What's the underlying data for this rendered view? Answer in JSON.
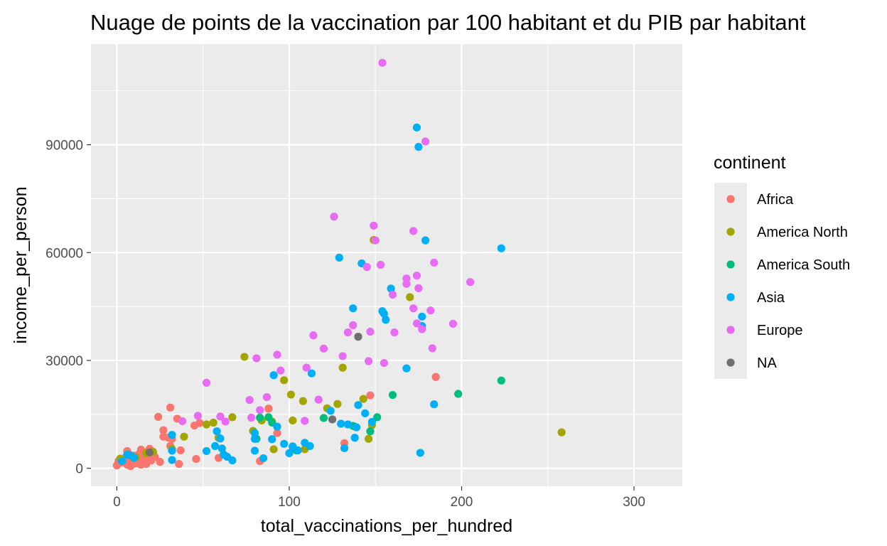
{
  "chart_data": {
    "type": "scatter",
    "title": "Nuage de points de la vaccination par 100 habitant et du PIB par habitant",
    "xlabel": "total_vaccinations_per_hundred",
    "ylabel": "income_per_person",
    "xlim": [
      -15,
      328
    ],
    "ylim": [
      -5000,
      118000
    ],
    "x_ticks": [
      0,
      100,
      200,
      300
    ],
    "y_ticks": [
      0,
      30000,
      60000,
      90000
    ],
    "x_tick_labels": [
      "0",
      "100",
      "200",
      "300"
    ],
    "y_tick_labels": [
      "0",
      "30000",
      "60000",
      "90000"
    ],
    "grid": true,
    "panel_background": "#ebebeb",
    "legend": {
      "title": "continent",
      "position": "right"
    },
    "series": [
      {
        "name": "Africa",
        "color": "#f8766d",
        "points": [
          [
            0,
            800
          ],
          [
            0.5,
            1200
          ],
          [
            1,
            2000
          ],
          [
            2,
            1500
          ],
          [
            3,
            2500
          ],
          [
            4,
            1800
          ],
          [
            5,
            3000
          ],
          [
            6,
            1000
          ],
          [
            6,
            4800
          ],
          [
            7,
            2200
          ],
          [
            8,
            600
          ],
          [
            9,
            1600
          ],
          [
            10,
            3500
          ],
          [
            10,
            2800
          ],
          [
            11,
            1400
          ],
          [
            12,
            2400
          ],
          [
            13,
            4000
          ],
          [
            14,
            5200
          ],
          [
            14,
            1000
          ],
          [
            15,
            2000
          ],
          [
            15,
            3000
          ],
          [
            16,
            4500
          ],
          [
            17,
            1200
          ],
          [
            17,
            2600
          ],
          [
            18,
            3800
          ],
          [
            19,
            5400
          ],
          [
            20,
            2200
          ],
          [
            21,
            4400
          ],
          [
            22,
            3200
          ],
          [
            24,
            14300
          ],
          [
            25,
            1800
          ],
          [
            27,
            10600
          ],
          [
            27,
            8800
          ],
          [
            30,
            8500
          ],
          [
            31,
            16900
          ],
          [
            31,
            6200
          ],
          [
            32,
            8200
          ],
          [
            35,
            13800
          ],
          [
            36,
            1200
          ],
          [
            37,
            5000
          ],
          [
            45,
            11900
          ],
          [
            46,
            2600
          ],
          [
            48,
            12600
          ],
          [
            59,
            2900
          ],
          [
            83,
            2000
          ],
          [
            88,
            16600
          ],
          [
            93,
            9800
          ],
          [
            102,
            5700
          ],
          [
            132,
            7000
          ],
          [
            147,
            20300
          ],
          [
            185,
            25400
          ]
        ]
      },
      {
        "name": "America North",
        "color": "#a3a500",
        "points": [
          [
            2,
            2700
          ],
          [
            11,
            3100
          ],
          [
            17,
            4200
          ],
          [
            21,
            4600
          ],
          [
            32,
            5400
          ],
          [
            39,
            8800
          ],
          [
            52,
            12200
          ],
          [
            56,
            12700
          ],
          [
            59,
            8500
          ],
          [
            67,
            14200
          ],
          [
            74,
            31000
          ],
          [
            79,
            10400
          ],
          [
            84,
            13300
          ],
          [
            90,
            13000
          ],
          [
            91,
            5300
          ],
          [
            97,
            24500
          ],
          [
            101,
            20500
          ],
          [
            102,
            13300
          ],
          [
            108,
            18700
          ],
          [
            109,
            5300
          ],
          [
            122,
            16700
          ],
          [
            128,
            17900
          ],
          [
            131,
            28000
          ],
          [
            138,
            11600
          ],
          [
            143,
            19300
          ],
          [
            146,
            8200
          ],
          [
            148,
            12000
          ],
          [
            149,
            63500
          ],
          [
            170,
            47600
          ],
          [
            258,
            10000
          ]
        ]
      },
      {
        "name": "America South",
        "color": "#00bf7d",
        "points": [
          [
            81,
            8200
          ],
          [
            83,
            14100
          ],
          [
            88,
            14200
          ],
          [
            90,
            12700
          ],
          [
            104,
            5000
          ],
          [
            120,
            14000
          ],
          [
            137,
            11800
          ],
          [
            147,
            10300
          ],
          [
            151,
            14200
          ],
          [
            160,
            20400
          ],
          [
            198,
            20700
          ],
          [
            223,
            24400
          ]
        ]
      },
      {
        "name": "Asia",
        "color": "#00b0f6",
        "points": [
          [
            3,
            2000
          ],
          [
            6,
            3800
          ],
          [
            8,
            3600
          ],
          [
            10,
            2900
          ],
          [
            32,
            9300
          ],
          [
            32,
            4900
          ],
          [
            32,
            2300
          ],
          [
            52,
            4800
          ],
          [
            57,
            6200
          ],
          [
            58,
            10300
          ],
          [
            60,
            8300
          ],
          [
            61,
            5500
          ],
          [
            62,
            3800
          ],
          [
            64,
            3200
          ],
          [
            67,
            2200
          ],
          [
            80,
            9800
          ],
          [
            80,
            4900
          ],
          [
            80,
            8200
          ],
          [
            85,
            2800
          ],
          [
            90,
            8100
          ],
          [
            91,
            25900
          ],
          [
            93,
            11600
          ],
          [
            97,
            6800
          ],
          [
            100,
            4200
          ],
          [
            102,
            6100
          ],
          [
            105,
            5000
          ],
          [
            109,
            7100
          ],
          [
            112,
            6200
          ],
          [
            113,
            26400
          ],
          [
            124,
            16000
          ],
          [
            129,
            58600
          ],
          [
            130,
            12400
          ],
          [
            132,
            5600
          ],
          [
            134,
            12200
          ],
          [
            137,
            44500
          ],
          [
            138,
            8500
          ],
          [
            139,
            11400
          ],
          [
            140,
            17600
          ],
          [
            142,
            57000
          ],
          [
            144,
            15300
          ],
          [
            148,
            12900
          ],
          [
            154,
            43700
          ],
          [
            155,
            43000
          ],
          [
            156,
            41300
          ],
          [
            159,
            50000
          ],
          [
            168,
            27800
          ],
          [
            174,
            94800
          ],
          [
            175,
            89400
          ],
          [
            176,
            4300
          ],
          [
            177,
            42200
          ],
          [
            177,
            39600
          ],
          [
            179,
            63400
          ],
          [
            184,
            17800
          ],
          [
            223,
            61200
          ]
        ]
      },
      {
        "name": "Europe",
        "color": "#e76bf3",
        "points": [
          [
            38,
            13100
          ],
          [
            47,
            14600
          ],
          [
            52,
            23800
          ],
          [
            60,
            14400
          ],
          [
            63,
            13000
          ],
          [
            77,
            19000
          ],
          [
            78,
            14100
          ],
          [
            81,
            30600
          ],
          [
            83,
            16200
          ],
          [
            87,
            19800
          ],
          [
            93,
            31600
          ],
          [
            95,
            27200
          ],
          [
            109,
            13200
          ],
          [
            110,
            28000
          ],
          [
            114,
            37000
          ],
          [
            117,
            19100
          ],
          [
            120,
            33300
          ],
          [
            126,
            70000
          ],
          [
            131,
            31200
          ],
          [
            134,
            37800
          ],
          [
            137,
            39800
          ],
          [
            145,
            56000
          ],
          [
            146,
            29800
          ],
          [
            147,
            38000
          ],
          [
            149,
            67500
          ],
          [
            150,
            63400
          ],
          [
            153,
            56600
          ],
          [
            154,
            112800
          ],
          [
            155,
            29300
          ],
          [
            160,
            48300
          ],
          [
            161,
            37800
          ],
          [
            168,
            51300
          ],
          [
            168,
            52800
          ],
          [
            172,
            44500
          ],
          [
            172,
            66000
          ],
          [
            174,
            40300
          ],
          [
            174,
            53600
          ],
          [
            175,
            50100
          ],
          [
            177,
            38700
          ],
          [
            179,
            90900
          ],
          [
            182,
            43900
          ],
          [
            183,
            33400
          ],
          [
            184,
            57200
          ],
          [
            195,
            40200
          ],
          [
            205,
            51800
          ]
        ]
      },
      {
        "name": "NA",
        "color": "#6f6f6f",
        "points": [
          [
            19,
            4400
          ],
          [
            125,
            13600
          ],
          [
            140,
            36600
          ]
        ]
      }
    ]
  }
}
